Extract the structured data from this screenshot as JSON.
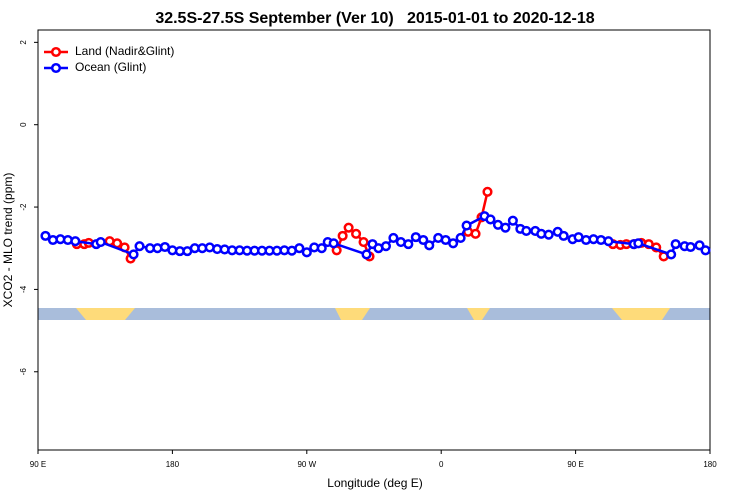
{
  "chart_data": {
    "type": "line",
    "title": "32.5S-27.5S September (Ver 10)   2015-01-01 to 2020-12-18",
    "xlabel": "Longitude (deg E)",
    "ylabel": "XCO2 - MLO trend (ppm)",
    "xlim": [
      90,
      540
    ],
    "ylim": [
      -7.9,
      2.3
    ],
    "xticks": [
      {
        "value": 90,
        "label": "90 E"
      },
      {
        "value": 180,
        "label": "180"
      },
      {
        "value": 270,
        "label": "90 W"
      },
      {
        "value": 360,
        "label": "0"
      },
      {
        "value": 450,
        "label": "90 E"
      },
      {
        "value": 540,
        "label": "180"
      }
    ],
    "yticks": [
      2,
      0,
      -2,
      -4,
      -6
    ],
    "legend": "top-left",
    "series": [
      {
        "name": "Land (Nadir&Glint)",
        "color": "#ff0000",
        "x": [
          116,
          121,
          124,
          138,
          143,
          148,
          152,
          null,
          290,
          294,
          298,
          303,
          308,
          312,
          null,
          378,
          383,
          387,
          391,
          null,
          475,
          480,
          484,
          489,
          494,
          499,
          504,
          509
        ],
        "values": [
          -2.9,
          -2.9,
          -2.87,
          -2.83,
          -2.88,
          -2.98,
          -3.25,
          null,
          -3.05,
          -2.7,
          -2.5,
          -2.65,
          -2.85,
          -3.2,
          null,
          -2.6,
          -2.65,
          -2.25,
          -1.63,
          null,
          -2.9,
          -2.92,
          -2.9,
          -2.9,
          -2.87,
          -2.9,
          -2.98,
          -3.2
        ]
      },
      {
        "name": "Ocean (Glint)",
        "color": "#0000ff",
        "x": [
          95,
          100,
          105,
          110,
          115,
          129,
          132,
          154,
          158,
          165,
          170,
          175,
          180,
          185,
          190,
          195,
          200,
          205,
          210,
          215,
          220,
          225,
          230,
          235,
          240,
          245,
          250,
          255,
          260,
          265,
          270,
          275,
          280,
          284,
          288,
          310,
          314,
          318,
          323,
          328,
          333,
          338,
          343,
          348,
          352,
          358,
          363,
          368,
          373,
          377,
          389,
          393,
          398,
          403,
          408,
          413,
          417,
          423,
          427,
          432,
          438,
          442,
          448,
          452,
          457,
          462,
          467,
          472,
          489,
          492,
          514,
          517,
          523,
          527,
          533,
          537
        ],
        "values": [
          -2.7,
          -2.8,
          -2.78,
          -2.8,
          -2.83,
          -2.9,
          -2.85,
          -3.15,
          -2.95,
          -3.0,
          -3.0,
          -2.97,
          -3.05,
          -3.07,
          -3.07,
          -3.0,
          -3.0,
          -2.98,
          -3.02,
          -3.03,
          -3.05,
          -3.05,
          -3.06,
          -3.06,
          -3.06,
          -3.06,
          -3.06,
          -3.05,
          -3.06,
          -3.0,
          -3.1,
          -2.98,
          -3.0,
          -2.85,
          -2.88,
          -3.15,
          -2.9,
          -3.0,
          -2.95,
          -2.75,
          -2.85,
          -2.9,
          -2.73,
          -2.8,
          -2.93,
          -2.75,
          -2.8,
          -2.88,
          -2.75,
          -2.45,
          -2.22,
          -2.3,
          -2.43,
          -2.5,
          -2.33,
          -2.53,
          -2.58,
          -2.58,
          -2.65,
          -2.67,
          -2.6,
          -2.7,
          -2.78,
          -2.73,
          -2.8,
          -2.78,
          -2.8,
          -2.83,
          -2.9,
          -2.88,
          -3.15,
          -2.9,
          -2.95,
          -2.97,
          -2.93,
          -3.05
        ]
      }
    ]
  }
}
